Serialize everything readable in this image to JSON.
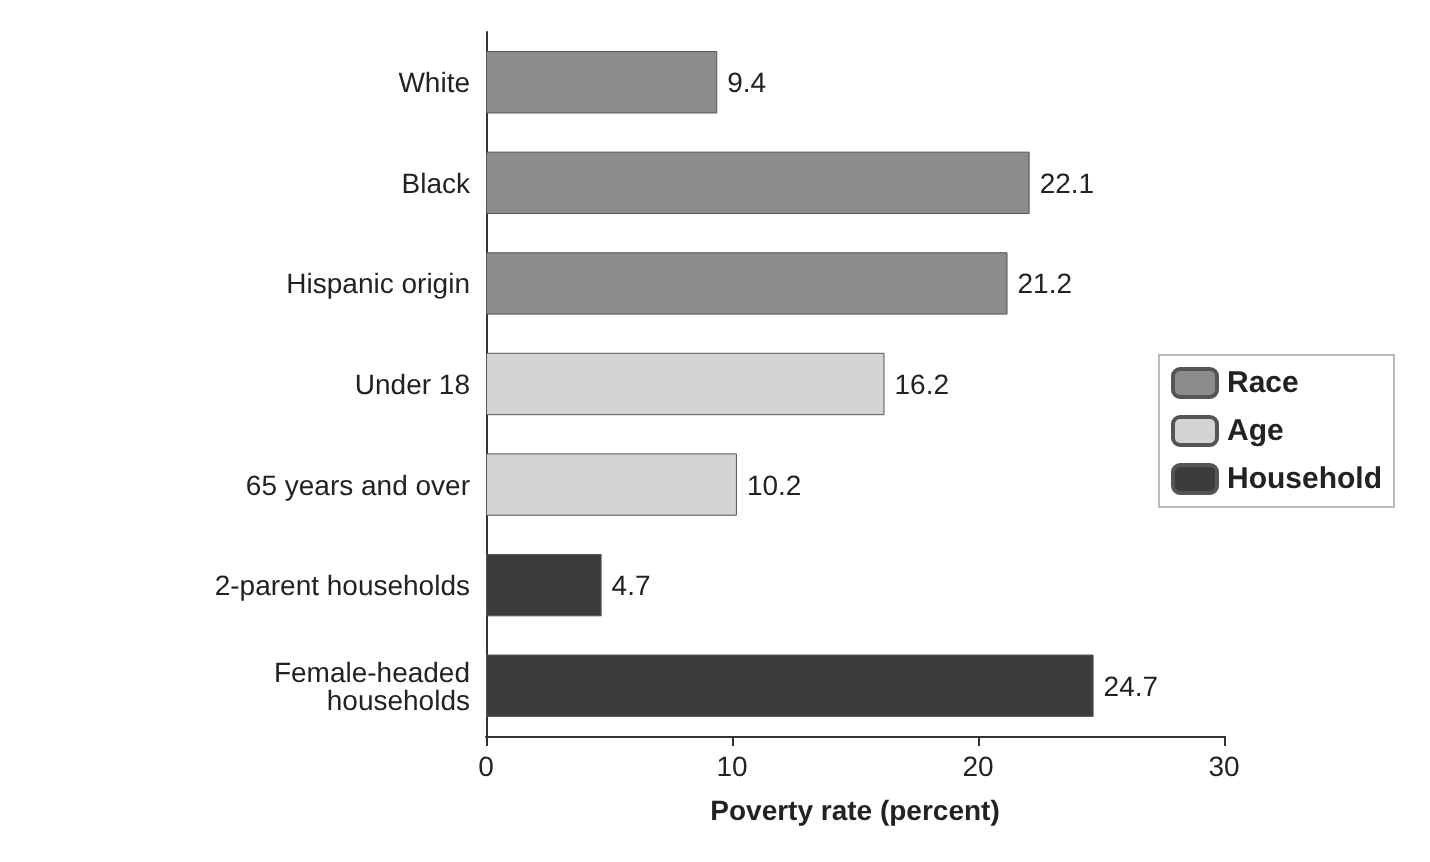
{
  "chart_data": {
    "type": "bar",
    "orientation": "horizontal",
    "stacked": true,
    "categories": [
      "White",
      "Black",
      "Hispanic origin",
      "Under 18",
      "65 years and over",
      "2-parent households",
      "Female-headed\nhouseholds"
    ],
    "series": [
      {
        "name": "Race",
        "color": "#8c8c8c",
        "values": [
          9.4,
          22.1,
          21.2,
          null,
          null,
          null,
          null
        ]
      },
      {
        "name": "Age",
        "color": "#d4d4d4",
        "values": [
          null,
          null,
          null,
          16.2,
          10.2,
          null,
          null
        ]
      },
      {
        "name": "Household",
        "color": "#3c3c3c",
        "values": [
          null,
          null,
          null,
          null,
          null,
          4.7,
          24.7
        ]
      }
    ],
    "xlabel": "Poverty rate (percent)",
    "xlim": [
      0,
      30
    ],
    "xticks": [
      0,
      10,
      20,
      30
    ],
    "data_labels": true,
    "legend": "right",
    "grid": false
  }
}
